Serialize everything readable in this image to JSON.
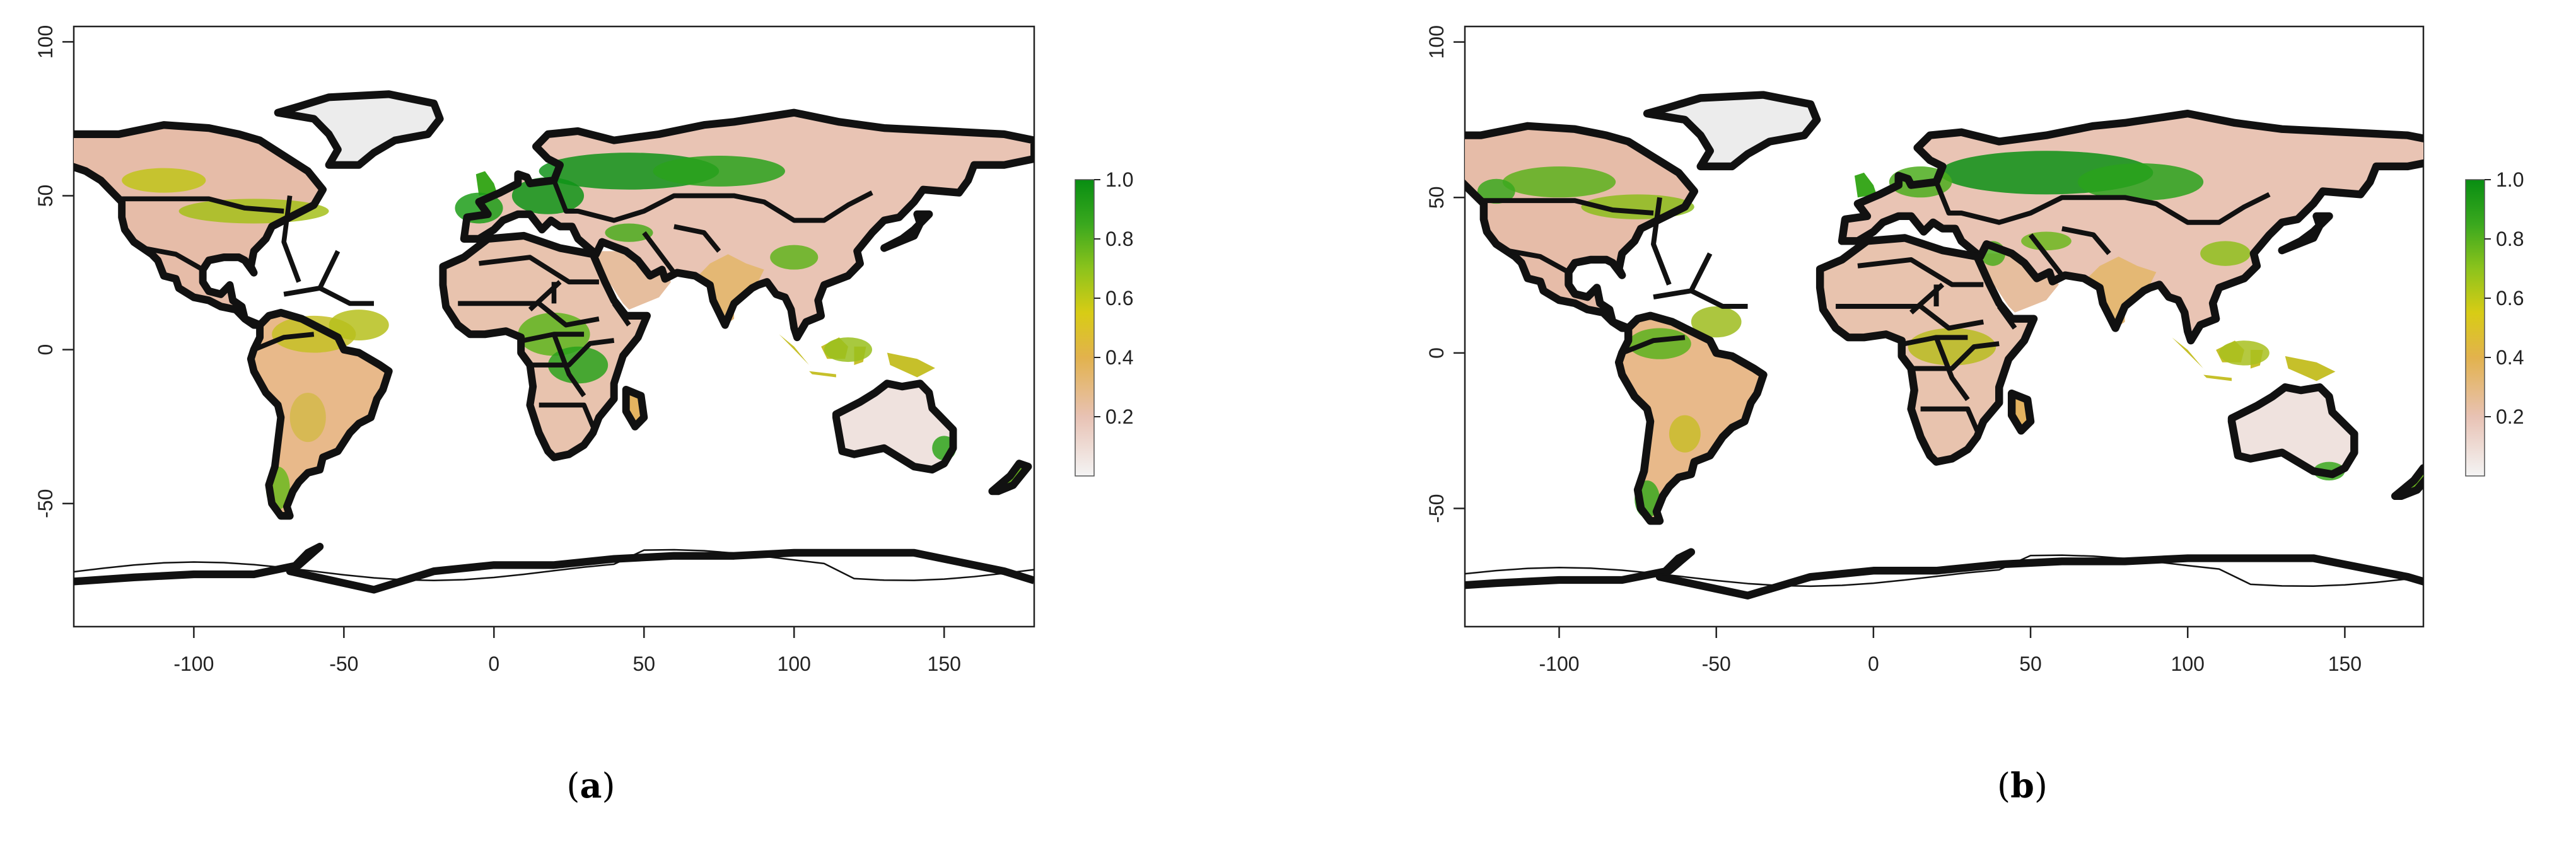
{
  "colors": {
    "low": "#f2f2f2",
    "pale": "#e9c1b3",
    "mid": "#e2b24d",
    "yellow": "#d8cc15",
    "lime": "#8cc31c",
    "green": "#3aa81e",
    "dark": "#0a8f14"
  },
  "maps": [
    {
      "id": "a",
      "caption": "(a)",
      "caption_letter": "a",
      "x_ticks": [
        -100,
        -50,
        0,
        50,
        100,
        150
      ],
      "y_ticks": [
        -50,
        0,
        50,
        100
      ],
      "xlim": [
        -140,
        180
      ],
      "ylim": [
        -90,
        105
      ],
      "legend_ticks": [
        "1.0",
        "0.8",
        "0.6",
        "0.4",
        "0.2"
      ],
      "legend_range": [
        0,
        1.0
      ]
    },
    {
      "id": "b",
      "caption": "(b)",
      "caption_letter": "b",
      "x_ticks": [
        -100,
        -50,
        0,
        50,
        100,
        150
      ],
      "y_ticks": [
        -50,
        0,
        50,
        100
      ],
      "xlim": [
        -130,
        175
      ],
      "ylim": [
        -88,
        105
      ],
      "legend_ticks": [
        "1.0",
        "0.8",
        "0.6",
        "0.4",
        "0.2"
      ],
      "legend_range": [
        0,
        1.0
      ]
    }
  ]
}
